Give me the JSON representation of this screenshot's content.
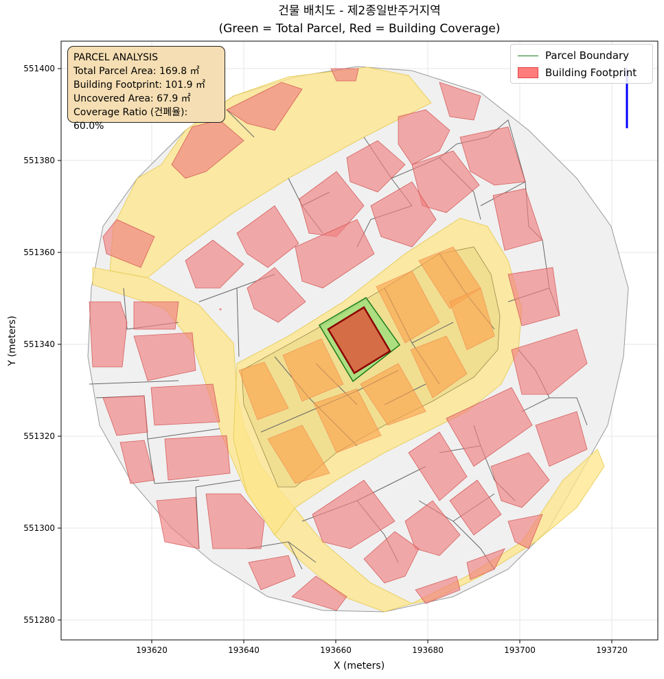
{
  "title_line1": "건물 배치도 - 제2종일반주거지역",
  "title_line2": "(Green = Total Parcel, Red = Building Coverage)",
  "xlabel": "X (meters)",
  "ylabel": "Y (meters)",
  "x_ticks": [
    "193620",
    "193640",
    "193660",
    "193680",
    "193700",
    "193720"
  ],
  "y_ticks": [
    "551400",
    "551380",
    "551360",
    "551340",
    "551320",
    "551300",
    "551280"
  ],
  "info": {
    "heading": "PARCEL ANALYSIS",
    "total_area": "Total Parcel Area: 169.8 ㎡",
    "footprint": "Building Footprint: 101.9 ㎡",
    "uncovered": "Uncovered Area: 67.9 ㎡",
    "ratio": "Coverage Ratio (건폐율): 60.0%"
  },
  "legend": {
    "parcel_boundary": "Parcel Boundary",
    "building_footprint": "Building Footprint"
  },
  "colors": {
    "parcel": "#1a7a1a",
    "parcel_fill": "#90e07a",
    "building": "#c0392b",
    "road": "#fde68a",
    "context_building": "#f08080"
  },
  "north_arrow": "N"
}
